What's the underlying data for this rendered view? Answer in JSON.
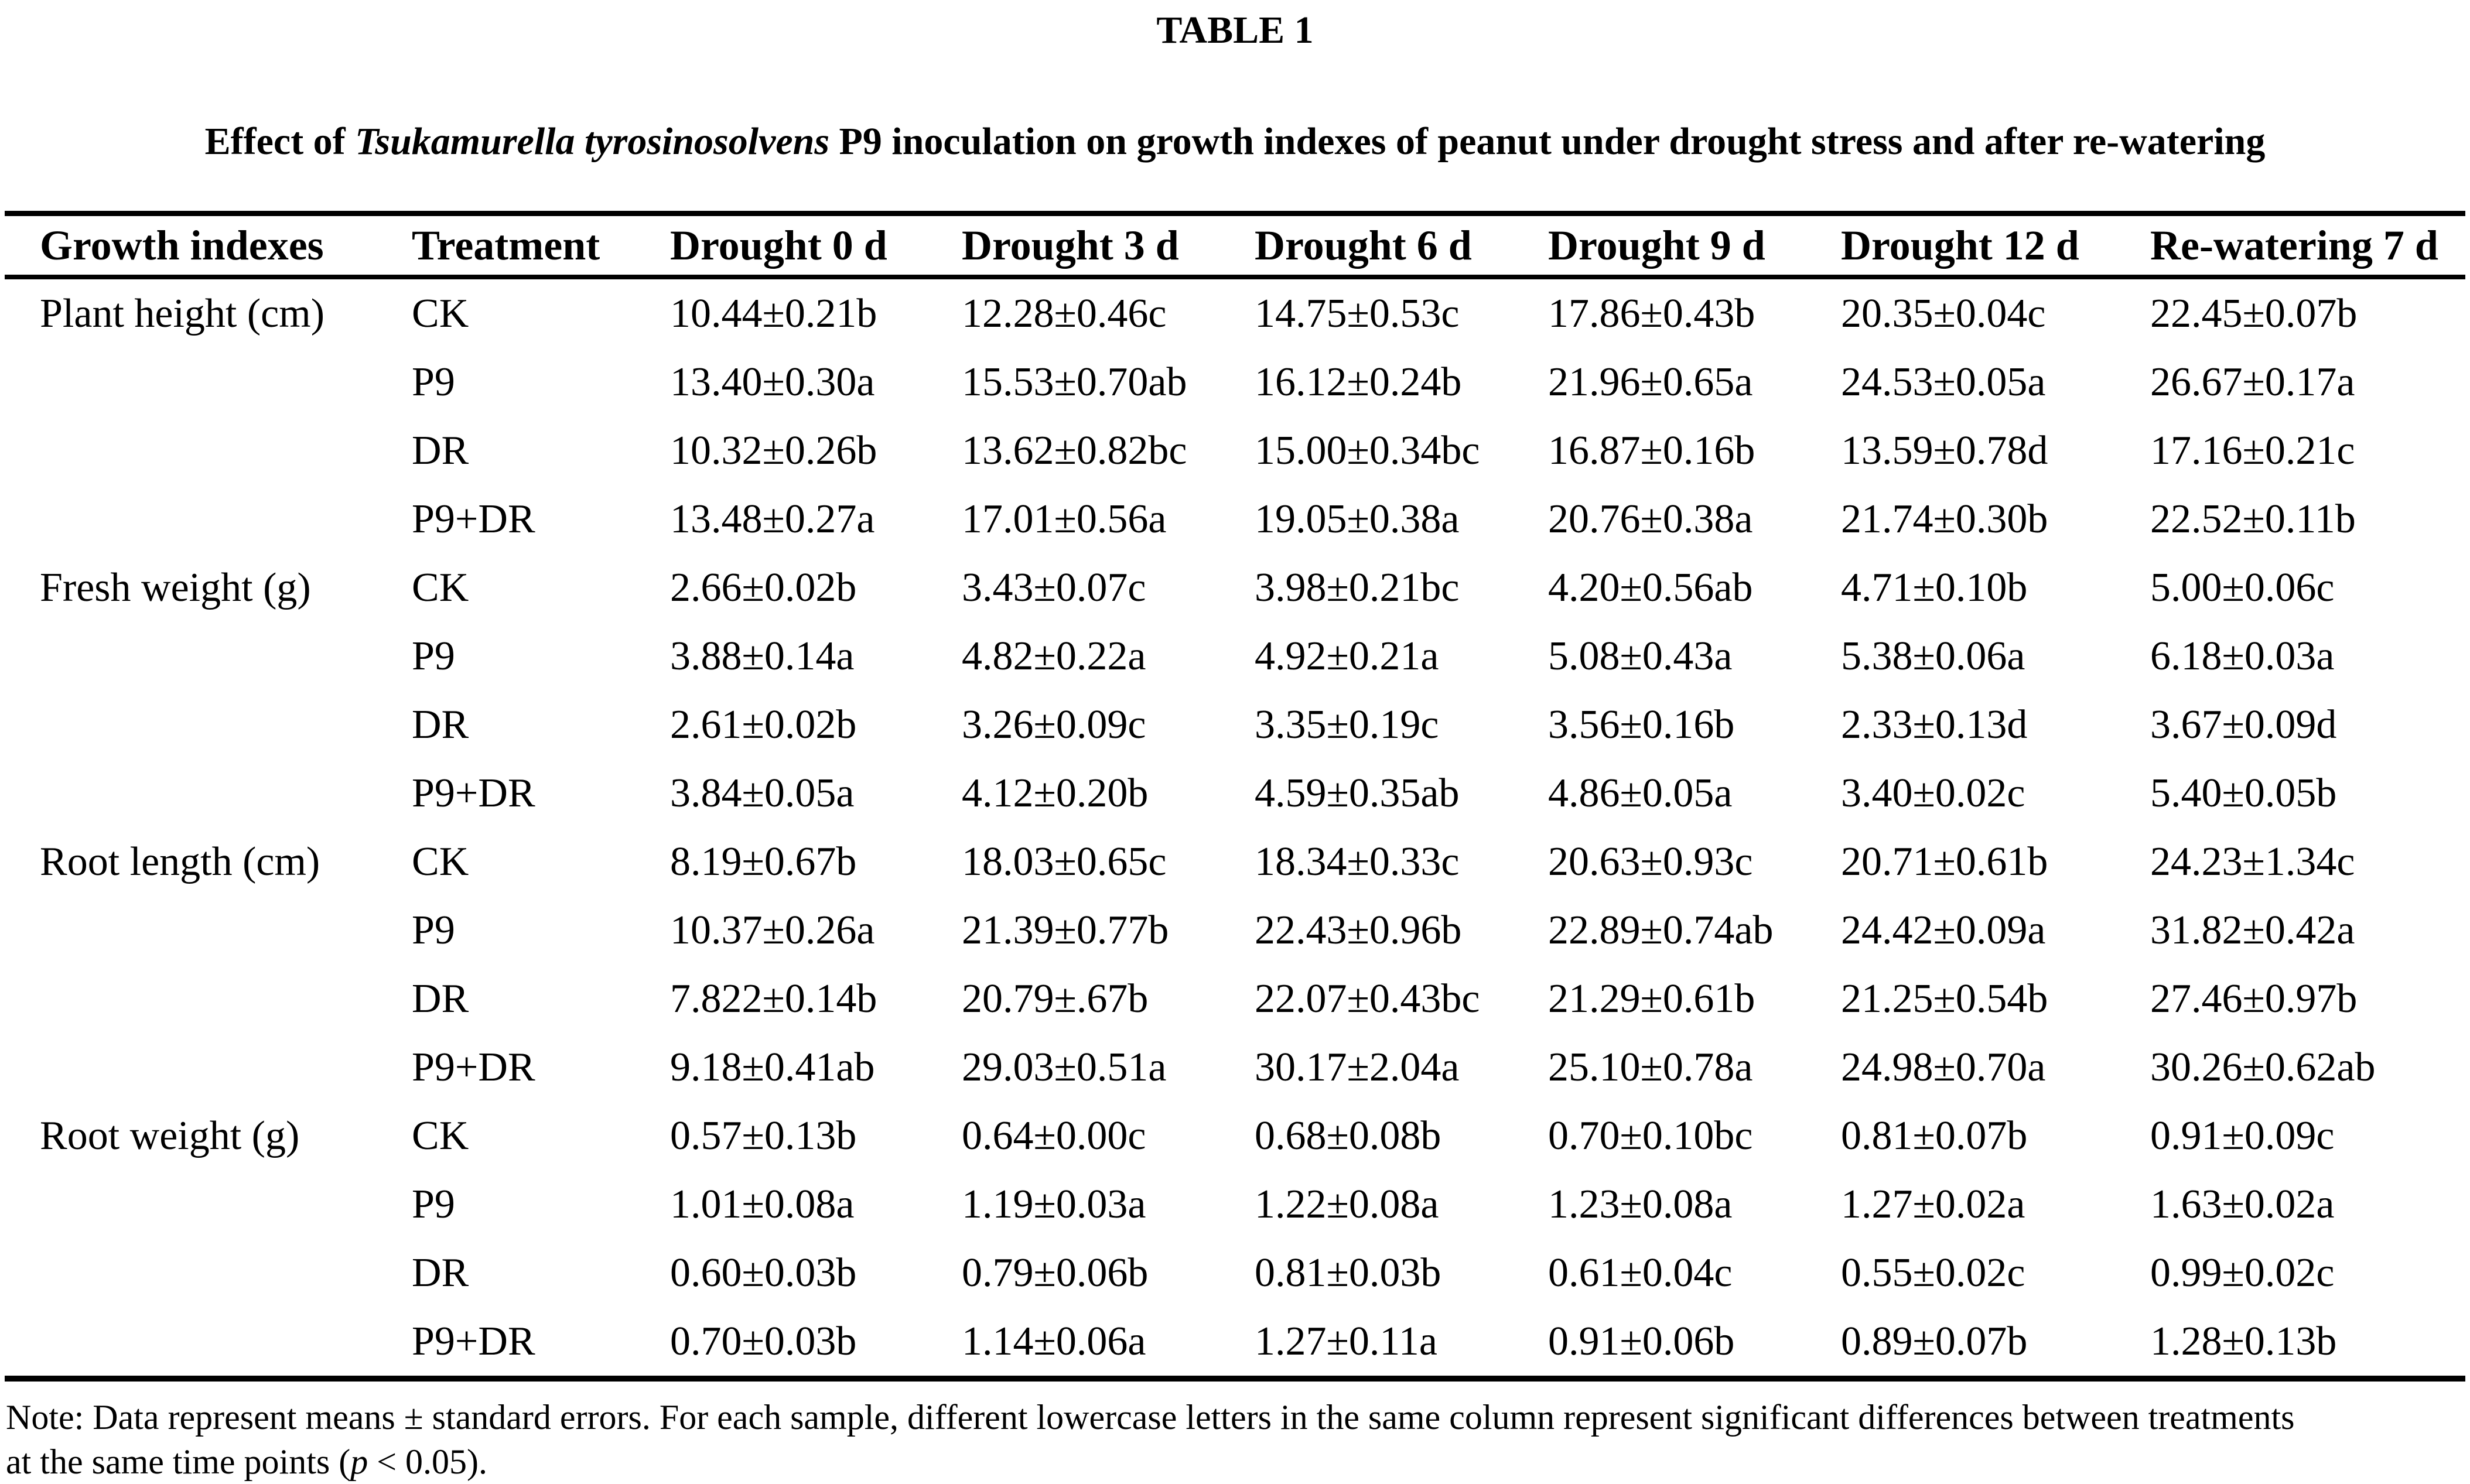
{
  "table_label": "TABLE 1",
  "caption": {
    "prefix": "Effect of ",
    "species_italic": "Tsukamurella tyrosinosolvens",
    "suffix": " P9 inoculation on growth indexes of peanut under drought stress and after re-watering"
  },
  "columns": [
    "Growth indexes",
    "Treatment",
    "Drought 0 d",
    "Drought 3 d",
    "Drought 6 d",
    "Drought 9 d",
    "Drought 12 d",
    "Re-watering 7 d"
  ],
  "groups": [
    {
      "index": "Plant height (cm)",
      "rows": [
        {
          "treatment": "CK",
          "values": [
            "10.44±0.21b",
            "12.28±0.46c",
            "14.75±0.53c",
            "17.86±0.43b",
            "20.35±0.04c",
            "22.45±0.07b"
          ]
        },
        {
          "treatment": "P9",
          "values": [
            "13.40±0.30a",
            "15.53±0.70ab",
            "16.12±0.24b",
            "21.96±0.65a",
            "24.53±0.05a",
            "26.67±0.17a"
          ]
        },
        {
          "treatment": "DR",
          "values": [
            "10.32±0.26b",
            "13.62±0.82bc",
            "15.00±0.34bc",
            "16.87±0.16b",
            "13.59±0.78d",
            "17.16±0.21c"
          ]
        },
        {
          "treatment": "P9+DR",
          "values": [
            "13.48±0.27a",
            "17.01±0.56a",
            "19.05±0.38a",
            "20.76±0.38a",
            "21.74±0.30b",
            "22.52±0.11b"
          ]
        }
      ]
    },
    {
      "index": "Fresh weight (g)",
      "rows": [
        {
          "treatment": "CK",
          "values": [
            "2.66±0.02b",
            "3.43±0.07c",
            "3.98±0.21bc",
            "4.20±0.56ab",
            "4.71±0.10b",
            "5.00±0.06c"
          ]
        },
        {
          "treatment": "P9",
          "values": [
            "3.88±0.14a",
            "4.82±0.22a",
            "4.92±0.21a",
            "5.08±0.43a",
            "5.38±0.06a",
            "6.18±0.03a"
          ]
        },
        {
          "treatment": "DR",
          "values": [
            "2.61±0.02b",
            "3.26±0.09c",
            "3.35±0.19c",
            "3.56±0.16b",
            "2.33±0.13d",
            "3.67±0.09d"
          ]
        },
        {
          "treatment": "P9+DR",
          "values": [
            "3.84±0.05a",
            "4.12±0.20b",
            "4.59±0.35ab",
            "4.86±0.05a",
            "3.40±0.02c",
            "5.40±0.05b"
          ]
        }
      ]
    },
    {
      "index": "Root length (cm)",
      "rows": [
        {
          "treatment": "CK",
          "values": [
            "8.19±0.67b",
            "18.03±0.65c",
            "18.34±0.33c",
            "20.63±0.93c",
            "20.71±0.61b",
            "24.23±1.34c"
          ]
        },
        {
          "treatment": "P9",
          "values": [
            "10.37±0.26a",
            "21.39±0.77b",
            "22.43±0.96b",
            "22.89±0.74ab",
            "24.42±0.09a",
            "31.82±0.42a"
          ]
        },
        {
          "treatment": "DR",
          "values": [
            "7.822±0.14b",
            "20.79±.67b",
            "22.07±0.43bc",
            "21.29±0.61b",
            "21.25±0.54b",
            "27.46±0.97b"
          ]
        },
        {
          "treatment": "P9+DR",
          "values": [
            "9.18±0.41ab",
            "29.03±0.51a",
            "30.17±2.04a",
            "25.10±0.78a",
            "24.98±0.70a",
            "30.26±0.62ab"
          ]
        }
      ]
    },
    {
      "index": "Root weight (g)",
      "rows": [
        {
          "treatment": "CK",
          "values": [
            "0.57±0.13b",
            "0.64±0.00c",
            "0.68±0.08b",
            "0.70±0.10bc",
            "0.81±0.07b",
            "0.91±0.09c"
          ]
        },
        {
          "treatment": "P9",
          "values": [
            "1.01±0.08a",
            "1.19±0.03a",
            "1.22±0.08a",
            "1.23±0.08a",
            "1.27±0.02a",
            "1.63±0.02a"
          ]
        },
        {
          "treatment": "DR",
          "values": [
            "0.60±0.03b",
            "0.79±0.06b",
            "0.81±0.03b",
            "0.61±0.04c",
            "0.55±0.02c",
            "0.99±0.02c"
          ]
        },
        {
          "treatment": "P9+DR",
          "values": [
            "0.70±0.03b",
            "1.14±0.06a",
            "1.27±0.11a",
            "0.91±0.06b",
            "0.89±0.07b",
            "1.28±0.13b"
          ]
        }
      ]
    }
  ],
  "note": {
    "line1": "Note: Data represent means ± standard errors. For each sample, different lowercase letters in the same column represent significant differences between treatments",
    "line2_prefix": "at the same time points (",
    "line2_p": "p",
    "line2_suffix": " < 0.05)."
  }
}
